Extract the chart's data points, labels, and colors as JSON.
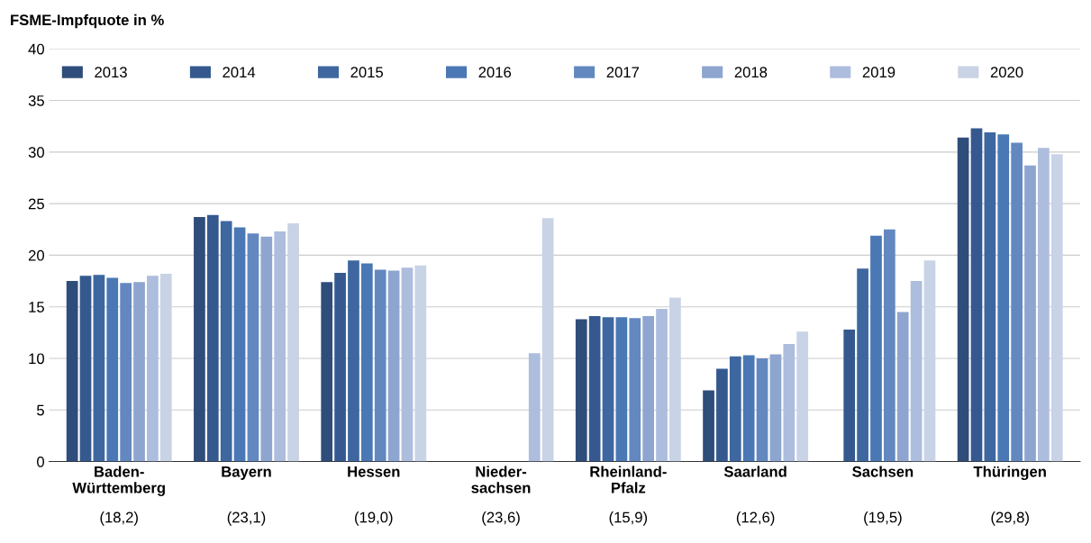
{
  "chart_data": {
    "type": "bar",
    "ylabel": "FSME-Impfquote in %",
    "categories": [
      "Baden-\nWürttemberg\n(18,2)",
      "Bayern\n(23,1)",
      "Hessen\n(19,0)",
      "Nieder-\nsachsen\n(23,6)",
      "Rheinland-\nPfalz\n(15,9)",
      "Saarland\n(12,6)",
      "Sachsen\n(19,5)",
      "Thüringen\n(29,8)"
    ],
    "series": [
      {
        "name": "2013",
        "color": "#2f4d7a",
        "values": [
          17.5,
          23.7,
          17.4,
          null,
          13.8,
          6.9,
          null,
          31.4
        ]
      },
      {
        "name": "2014",
        "color": "#35598f",
        "values": [
          18.0,
          23.9,
          18.3,
          null,
          14.1,
          9.0,
          12.8,
          32.3
        ]
      },
      {
        "name": "2015",
        "color": "#3e67a0",
        "values": [
          18.1,
          23.3,
          19.5,
          null,
          14.0,
          10.2,
          18.7,
          31.9
        ]
      },
      {
        "name": "2016",
        "color": "#4a78b4",
        "values": [
          17.8,
          22.7,
          19.2,
          null,
          14.0,
          10.3,
          21.9,
          31.7
        ]
      },
      {
        "name": "2017",
        "color": "#6388c0",
        "values": [
          17.3,
          22.1,
          18.6,
          null,
          13.9,
          10.0,
          22.5,
          30.9
        ]
      },
      {
        "name": "2018",
        "color": "#8ea5cf",
        "values": [
          17.4,
          21.8,
          18.5,
          null,
          14.1,
          10.4,
          14.5,
          28.7
        ]
      },
      {
        "name": "2019",
        "color": "#adbddd",
        "values": [
          18.0,
          22.3,
          18.8,
          10.5,
          14.8,
          11.4,
          17.5,
          30.4
        ]
      },
      {
        "name": "2020",
        "color": "#c9d3e6",
        "values": [
          18.2,
          23.1,
          19.0,
          23.6,
          15.9,
          12.6,
          19.5,
          29.8
        ]
      }
    ],
    "ylim": [
      0,
      40
    ],
    "yticks": [
      0,
      5,
      10,
      15,
      20,
      25,
      30,
      35,
      40
    ],
    "grid": "y",
    "legend": "top left"
  }
}
